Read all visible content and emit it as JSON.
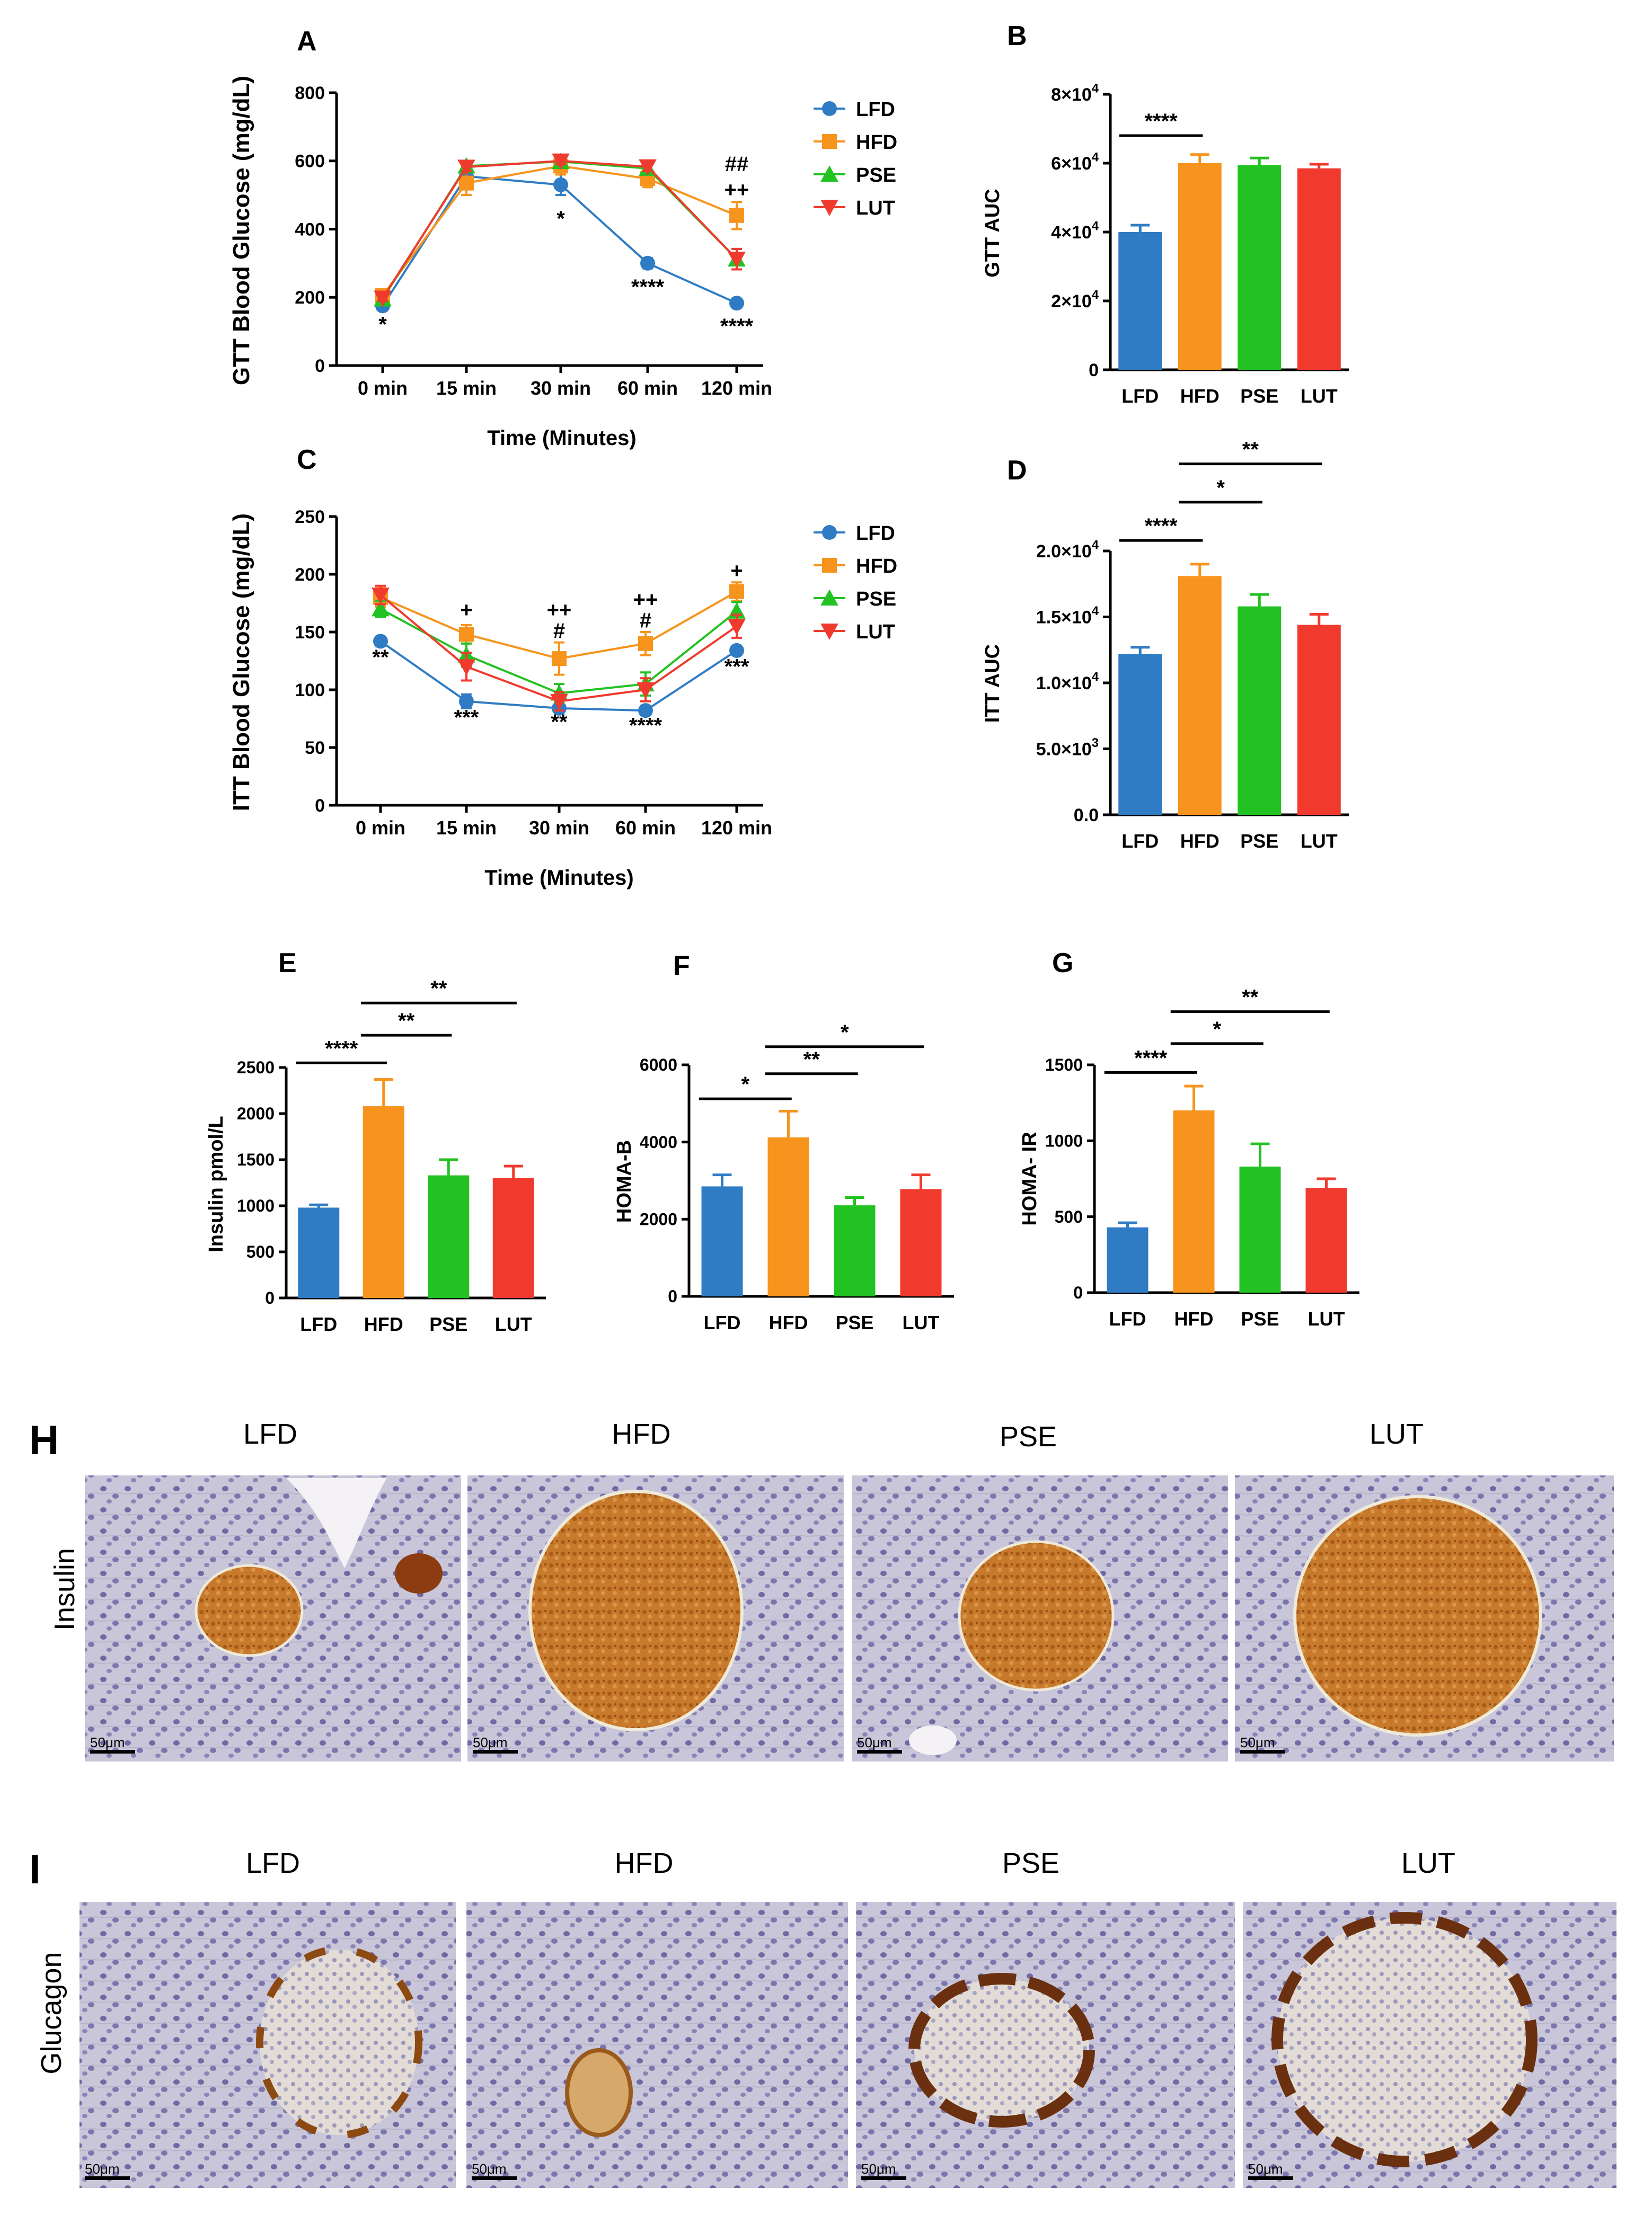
{
  "colors": {
    "LFD": "#2f7cc4",
    "HFD": "#f7941d",
    "PSE": "#22c222",
    "LUT": "#f03a2e"
  },
  "chart_data": [
    {
      "id": "A",
      "type": "line",
      "panel_label": "A",
      "xlabel": "Time (Minutes)",
      "ylabel": "GTT Blood Glucose (mg/dL)",
      "categories": [
        "0 min",
        "15 min",
        "30 min",
        "60 min",
        "120 min"
      ],
      "ylim": [
        0,
        800
      ],
      "yticks": [
        0,
        200,
        400,
        600,
        800
      ],
      "ytick_labels": [
        "0",
        "200",
        "400",
        "600",
        "800"
      ],
      "series": [
        {
          "name": "LFD",
          "marker": "circle",
          "values": [
            175,
            555,
            530,
            300,
            183
          ],
          "errors": [
            10,
            25,
            30,
            15,
            8
          ]
        },
        {
          "name": "HFD",
          "marker": "square",
          "values": [
            205,
            535,
            585,
            548,
            440
          ],
          "errors": [
            10,
            35,
            25,
            25,
            40
          ]
        },
        {
          "name": "PSE",
          "marker": "triangle-up",
          "values": [
            195,
            585,
            598,
            578,
            312
          ],
          "errors": [
            8,
            12,
            10,
            12,
            30
          ]
        },
        {
          "name": "LUT",
          "marker": "triangle-down",
          "values": [
            198,
            582,
            600,
            583,
            312
          ],
          "errors": [
            8,
            12,
            10,
            12,
            30
          ]
        }
      ],
      "annotations": [
        {
          "cat": 0,
          "text": "*",
          "anchor": 100
        },
        {
          "cat": 2,
          "text": "*",
          "anchor": 410
        },
        {
          "cat": 3,
          "text": "****",
          "anchor": 210
        },
        {
          "cat": 4,
          "text": "****",
          "anchor": 95
        },
        {
          "cat": 4,
          "text": "++",
          "anchor": 495
        },
        {
          "cat": 4,
          "text": "##",
          "anchor": 570
        }
      ]
    },
    {
      "id": "B",
      "type": "bar",
      "panel_label": "B",
      "ylabel": "GTT AUC",
      "categories": [
        "LFD",
        "HFD",
        "PSE",
        "LUT"
      ],
      "values": [
        40000,
        60000,
        59500,
        58500
      ],
      "errors": [
        2000,
        2500,
        2000,
        1200
      ],
      "ylim": [
        0,
        80000
      ],
      "yticks": [
        0,
        20000,
        40000,
        60000,
        80000
      ],
      "ytick_labels": [
        "0",
        "2×10",
        "4×10",
        "6×10",
        "8×10"
      ],
      "ytick_exps": [
        "",
        "4",
        "4",
        "4",
        "4"
      ],
      "significance": [
        {
          "from": 0,
          "to": 1,
          "text": "****",
          "y": 68000
        }
      ]
    },
    {
      "id": "C",
      "type": "line",
      "panel_label": "C",
      "xlabel": "Time (Minutes)",
      "ylabel": "ITT Blood Glucose (mg/dL)",
      "categories": [
        "0 min",
        "15 min",
        "30 min",
        "60 min",
        "120 min"
      ],
      "ylim": [
        0,
        250
      ],
      "yticks": [
        0,
        50,
        100,
        150,
        200,
        250
      ],
      "ytick_labels": [
        "0",
        "50",
        "100",
        "150",
        "200",
        "250"
      ],
      "series": [
        {
          "name": "LFD",
          "marker": "circle",
          "values": [
            142,
            90,
            84,
            82,
            134
          ],
          "errors": [
            4,
            6,
            4,
            4,
            4
          ]
        },
        {
          "name": "HFD",
          "marker": "square",
          "values": [
            180,
            148,
            127,
            140,
            185
          ],
          "errors": [
            8,
            8,
            14,
            10,
            8
          ]
        },
        {
          "name": "PSE",
          "marker": "triangle-up",
          "values": [
            170,
            130,
            97,
            105,
            168
          ],
          "errors": [
            7,
            10,
            8,
            10,
            8
          ]
        },
        {
          "name": "LUT",
          "marker": "triangle-down",
          "values": [
            182,
            120,
            90,
            100,
            155
          ],
          "errors": [
            8,
            12,
            8,
            10,
            10
          ]
        }
      ],
      "annotations": [
        {
          "cat": 0,
          "text": "**",
          "anchor": 122
        },
        {
          "cat": 1,
          "text": "***",
          "anchor": 70
        },
        {
          "cat": 1,
          "text": "+",
          "anchor": 163
        },
        {
          "cat": 2,
          "text": "**",
          "anchor": 66
        },
        {
          "cat": 2,
          "text": "#",
          "anchor": 145
        },
        {
          "cat": 2,
          "text": "++",
          "anchor": 163
        },
        {
          "cat": 3,
          "text": "****",
          "anchor": 63
        },
        {
          "cat": 3,
          "text": "#",
          "anchor": 154
        },
        {
          "cat": 3,
          "text": "++",
          "anchor": 172
        },
        {
          "cat": 4,
          "text": "***",
          "anchor": 114
        },
        {
          "cat": 4,
          "text": "+",
          "anchor": 197
        }
      ]
    },
    {
      "id": "D",
      "type": "bar",
      "panel_label": "D",
      "ylabel": "ITT AUC",
      "categories": [
        "LFD",
        "HFD",
        "PSE",
        "LUT"
      ],
      "values": [
        12200,
        18100,
        15800,
        14400
      ],
      "errors": [
        500,
        900,
        900,
        800
      ],
      "ylim": [
        0,
        20000
      ],
      "yticks": [
        0,
        5000,
        10000,
        15000,
        20000
      ],
      "ytick_labels": [
        "0.0",
        "5.0×10",
        "1.0×10",
        "1.5×10",
        "2.0×10"
      ],
      "ytick_exps": [
        "",
        "3",
        "4",
        "4",
        "4"
      ],
      "significance": [
        {
          "from": 0,
          "to": 1,
          "text": "****",
          "y": 20800
        },
        {
          "from": 1,
          "to": 2,
          "text": "*",
          "y": 23700
        },
        {
          "from": 1,
          "to": 3,
          "text": "**",
          "y": 26600
        }
      ]
    },
    {
      "id": "E",
      "type": "bar",
      "panel_label": "E",
      "ylabel": "Insulin pmol/L",
      "categories": [
        "LFD",
        "HFD",
        "PSE",
        "LUT"
      ],
      "values": [
        980,
        2080,
        1330,
        1300
      ],
      "errors": [
        30,
        290,
        170,
        130
      ],
      "ylim": [
        0,
        2500
      ],
      "yticks": [
        0,
        500,
        1000,
        1500,
        2000,
        2500
      ],
      "ytick_labels": [
        "0",
        "500",
        "1000",
        "1500",
        "2000",
        "2500"
      ],
      "significance": [
        {
          "from": 0,
          "to": 1,
          "text": "****",
          "y": 2550
        },
        {
          "from": 1,
          "to": 2,
          "text": "**",
          "y": 2850
        },
        {
          "from": 1,
          "to": 3,
          "text": "**",
          "y": 3200
        }
      ]
    },
    {
      "id": "F",
      "type": "bar",
      "panel_label": "F",
      "ylabel": "HOMA-B",
      "categories": [
        "LFD",
        "HFD",
        "PSE",
        "LUT"
      ],
      "values": [
        2850,
        4120,
        2360,
        2780
      ],
      "errors": [
        300,
        680,
        200,
        370
      ],
      "ylim": [
        0,
        6000
      ],
      "yticks": [
        0,
        2000,
        4000,
        6000
      ],
      "ytick_labels": [
        "0",
        "2000",
        "4000",
        "6000"
      ],
      "significance": [
        {
          "from": 0,
          "to": 1,
          "text": "*",
          "y": 5120
        },
        {
          "from": 1,
          "to": 2,
          "text": "**",
          "y": 5770
        },
        {
          "from": 1,
          "to": 3,
          "text": "*",
          "y": 6470
        }
      ]
    },
    {
      "id": "G",
      "type": "bar",
      "panel_label": "G",
      "ylabel": "HOMA- IR",
      "categories": [
        "LFD",
        "HFD",
        "PSE",
        "LUT"
      ],
      "values": [
        430,
        1200,
        830,
        690
      ],
      "errors": [
        30,
        160,
        150,
        60
      ],
      "ylim": [
        0,
        1500
      ],
      "yticks": [
        0,
        500,
        1000,
        1500
      ],
      "ytick_labels": [
        "0",
        "500",
        "1000",
        "1500"
      ],
      "significance": [
        {
          "from": 0,
          "to": 1,
          "text": "****",
          "y": 1450
        },
        {
          "from": 1,
          "to": 2,
          "text": "*",
          "y": 1640
        },
        {
          "from": 1,
          "to": 3,
          "text": "**",
          "y": 1850
        }
      ]
    }
  ],
  "histology": {
    "H": {
      "panel_label": "H",
      "row_label": "Insulin",
      "groups": [
        "LFD",
        "HFD",
        "PSE",
        "LUT"
      ],
      "scale_bar": "50μm"
    },
    "I": {
      "panel_label": "I",
      "row_label": "Glucagon",
      "groups": [
        "LFD",
        "HFD",
        "PSE",
        "LUT"
      ],
      "scale_bar": "50μm"
    }
  }
}
